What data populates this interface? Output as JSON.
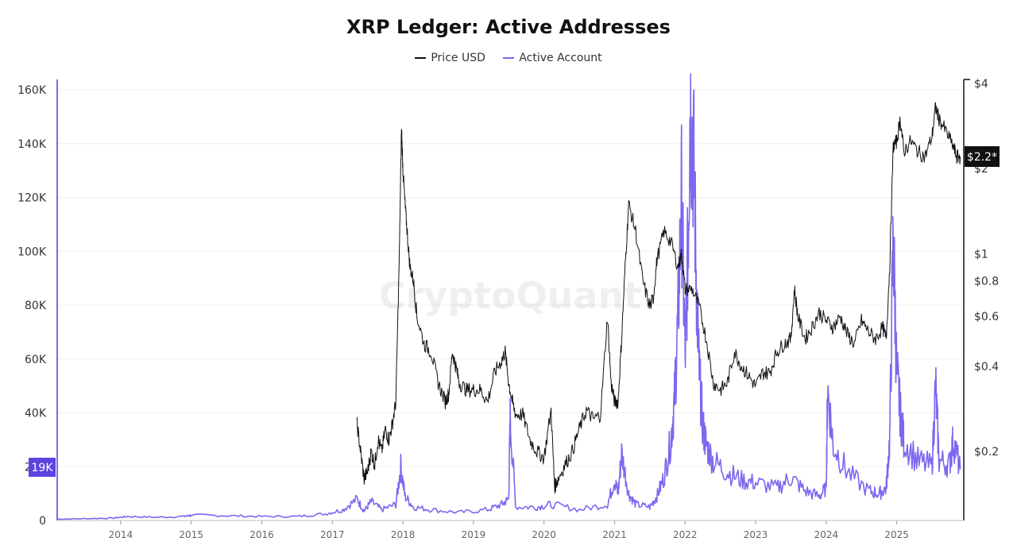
{
  "title": "XRP Ledger: Active Addresses",
  "watermark": "CryptoQuant",
  "legend": [
    {
      "label": "Price USD",
      "color": "#111111"
    },
    {
      "label": "Active Account",
      "color": "#7b68ee"
    }
  ],
  "badges": {
    "left": "19K",
    "right": "$2.2*"
  },
  "chart_data": {
    "type": "line",
    "title": "XRP Ledger: Active Addresses",
    "x_ticks": [
      "2014",
      "2015",
      "2016",
      "2017",
      "2018",
      "2019",
      "2020",
      "2021",
      "2022",
      "2023",
      "2024",
      "2025"
    ],
    "x_range": [
      2013.1,
      2025.95
    ],
    "y_left": {
      "ticks": [
        "0",
        "20K",
        "40K",
        "60K",
        "80K",
        "100K",
        "120K",
        "140K",
        "160K"
      ],
      "range": [
        0,
        160000
      ]
    },
    "y_right": {
      "scale": "log",
      "ticks": [
        "$0.2",
        "$0.4",
        "$0.6",
        "$0.8",
        "$1",
        "$2",
        "$4"
      ],
      "tick_values": [
        0.2,
        0.4,
        0.6,
        0.8,
        1,
        2,
        4
      ]
    },
    "series": [
      {
        "name": "Active Account",
        "axis": "left",
        "color": "#7b68ee",
        "x": [
          2013.1,
          2013.5,
          2013.9,
          2014.1,
          2014.5,
          2014.9,
          2015.0,
          2015.5,
          2016.0,
          2016.5,
          2016.9,
          2017.15,
          2017.35,
          2017.45,
          2017.55,
          2017.7,
          2017.9,
          2017.97,
          2018.03,
          2018.15,
          2018.4,
          2018.8,
          2019.2,
          2019.4,
          2019.5,
          2019.52,
          2019.6,
          2019.9,
          2020.1,
          2020.5,
          2020.9,
          2021.0,
          2021.05,
          2021.1,
          2021.2,
          2021.3,
          2021.5,
          2021.6,
          2021.7,
          2021.8,
          2021.85,
          2021.9,
          2021.95,
          2022.0,
          2022.04,
          2022.07,
          2022.12,
          2022.17,
          2022.2,
          2022.25,
          2022.3,
          2022.4,
          2022.6,
          2022.8,
          2023.0,
          2023.3,
          2023.5,
          2023.7,
          2023.9,
          2024.0,
          2024.02,
          2024.1,
          2024.3,
          2024.6,
          2024.75,
          2024.85,
          2024.9,
          2024.95,
          2025.0,
          2025.05,
          2025.1,
          2025.3,
          2025.5,
          2025.55,
          2025.6,
          2025.75,
          2025.8,
          2025.9
        ],
        "y": [
          500,
          700,
          900,
          1500,
          1200,
          1500,
          2000,
          1800,
          1500,
          1500,
          2500,
          4000,
          8000,
          3500,
          7000,
          4000,
          6000,
          20000,
          9000,
          5000,
          4000,
          3000,
          4000,
          6000,
          8000,
          38000,
          5000,
          5000,
          6000,
          4000,
          6000,
          15000,
          10000,
          25000,
          10000,
          6000,
          5000,
          9000,
          16000,
          30000,
          45000,
          75000,
          120000,
          60000,
          100000,
          155000,
          135000,
          80000,
          55000,
          35000,
          28000,
          22000,
          18000,
          15000,
          14000,
          12000,
          16000,
          11000,
          9000,
          12000,
          49000,
          28000,
          18000,
          11000,
          10000,
          12000,
          30000,
          105000,
          55000,
          40000,
          30000,
          22000,
          20000,
          50000,
          22000,
          21000,
          30000,
          19000
        ]
      },
      {
        "name": "Price USD",
        "axis": "right",
        "color": "#111111",
        "x": [
          2017.35,
          2017.4,
          2017.45,
          2017.5,
          2017.55,
          2017.6,
          2017.65,
          2017.7,
          2017.75,
          2017.8,
          2017.85,
          2017.9,
          2017.95,
          2017.98,
          2018.0,
          2018.03,
          2018.06,
          2018.1,
          2018.15,
          2018.2,
          2018.3,
          2018.4,
          2018.5,
          2018.6,
          2018.65,
          2018.7,
          2018.75,
          2018.8,
          2018.9,
          2019.0,
          2019.1,
          2019.2,
          2019.3,
          2019.4,
          2019.45,
          2019.5,
          2019.55,
          2019.6,
          2019.7,
          2019.8,
          2019.9,
          2020.0,
          2020.1,
          2020.15,
          2020.2,
          2020.3,
          2020.4,
          2020.5,
          2020.6,
          2020.7,
          2020.8,
          2020.9,
          2020.95,
          2021.0,
          2021.05,
          2021.1,
          2021.15,
          2021.2,
          2021.3,
          2021.4,
          2021.5,
          2021.55,
          2021.6,
          2021.7,
          2021.8,
          2021.9,
          2021.95,
          2022.0,
          2022.1,
          2022.2,
          2022.3,
          2022.4,
          2022.5,
          2022.6,
          2022.7,
          2022.8,
          2022.9,
          2023.0,
          2023.1,
          2023.2,
          2023.3,
          2023.4,
          2023.5,
          2023.55,
          2023.6,
          2023.7,
          2023.8,
          2023.9,
          2024.0,
          2024.1,
          2024.2,
          2024.3,
          2024.4,
          2024.5,
          2024.6,
          2024.7,
          2024.8,
          2024.85,
          2024.9,
          2024.95,
          2025.0,
          2025.05,
          2025.1,
          2025.2,
          2025.3,
          2025.4,
          2025.5,
          2025.55,
          2025.6,
          2025.7,
          2025.8,
          2025.85,
          2025.9
        ],
        "y": [
          0.25,
          0.2,
          0.16,
          0.17,
          0.2,
          0.18,
          0.22,
          0.2,
          0.24,
          0.22,
          0.25,
          0.3,
          1.0,
          2.8,
          2.0,
          1.5,
          1.2,
          0.9,
          0.8,
          0.6,
          0.48,
          0.45,
          0.35,
          0.3,
          0.32,
          0.45,
          0.4,
          0.35,
          0.33,
          0.33,
          0.33,
          0.3,
          0.38,
          0.42,
          0.45,
          0.35,
          0.3,
          0.27,
          0.27,
          0.22,
          0.2,
          0.19,
          0.28,
          0.15,
          0.16,
          0.18,
          0.2,
          0.24,
          0.28,
          0.26,
          0.27,
          0.6,
          0.35,
          0.3,
          0.3,
          0.5,
          0.9,
          1.5,
          1.2,
          0.8,
          0.65,
          0.7,
          0.95,
          1.2,
          1.1,
          0.9,
          1.0,
          0.75,
          0.75,
          0.65,
          0.5,
          0.35,
          0.33,
          0.35,
          0.45,
          0.4,
          0.37,
          0.34,
          0.38,
          0.38,
          0.45,
          0.48,
          0.5,
          0.75,
          0.6,
          0.5,
          0.55,
          0.62,
          0.58,
          0.55,
          0.6,
          0.52,
          0.48,
          0.58,
          0.53,
          0.5,
          0.55,
          0.5,
          0.9,
          2.4,
          2.5,
          3.0,
          2.3,
          2.5,
          2.3,
          2.2,
          2.6,
          3.3,
          3.0,
          2.7,
          2.4,
          2.2,
          2.2
        ]
      }
    ]
  }
}
